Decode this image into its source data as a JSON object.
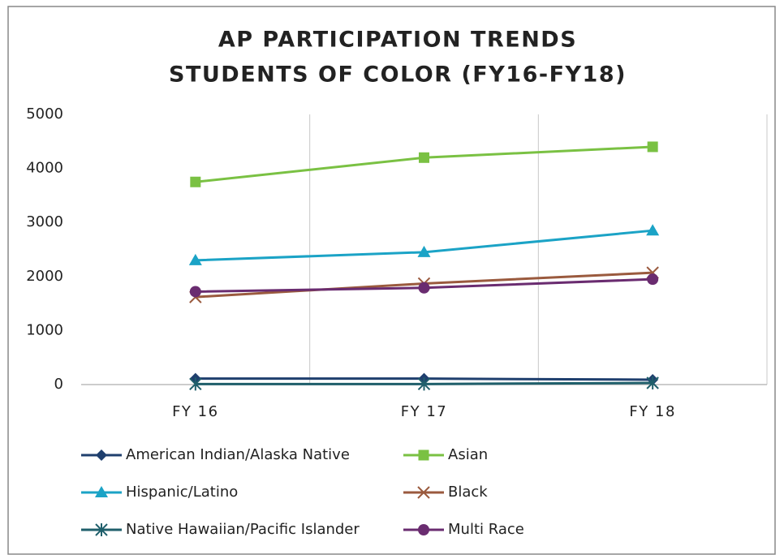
{
  "chart_data": {
    "type": "line",
    "title": [
      "AP PARTICIPATION TRENDS",
      "STUDENTS OF COLOR (FY16-FY18)"
    ],
    "categories": [
      "FY 16",
      "FY 17",
      "FY 18"
    ],
    "ylim": [
      0,
      5000
    ],
    "yticks": [
      0,
      1000,
      2000,
      3000,
      4000,
      5000
    ],
    "grid": "x",
    "series": [
      {
        "name": "American Indian/Alaska Native",
        "color": "#1f3f6e",
        "marker": "diamond",
        "values": [
          110,
          110,
          90
        ]
      },
      {
        "name": "Asian",
        "color": "#7ac143",
        "marker": "square",
        "values": [
          3750,
          4200,
          4400
        ]
      },
      {
        "name": "Hispanic/Latino",
        "color": "#1ba3c6",
        "marker": "triangle",
        "values": [
          2300,
          2450,
          2850
        ]
      },
      {
        "name": "Black",
        "color": "#9a5a3e",
        "marker": "x",
        "values": [
          1620,
          1870,
          2070
        ]
      },
      {
        "name": "Native Hawaiian/Pacific Islander",
        "color": "#1f5f6b",
        "marker": "asterisk",
        "values": [
          10,
          10,
          30
        ]
      },
      {
        "name": "Multi Race",
        "color": "#6a2c70",
        "marker": "circle",
        "values": [
          1720,
          1790,
          1950
        ]
      }
    ]
  }
}
